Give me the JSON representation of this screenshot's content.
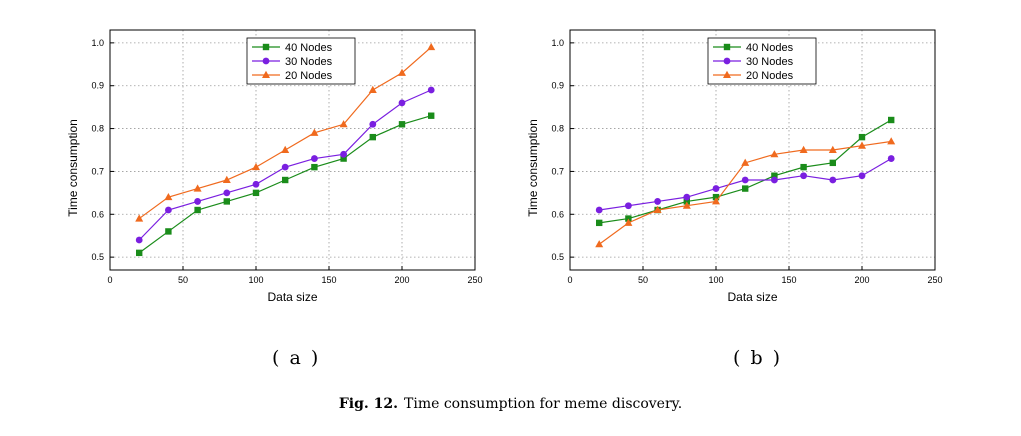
{
  "colors": {
    "series_40": "#1a8c1a",
    "series_30": "#7a1fe0",
    "series_20": "#f06a1e"
  },
  "chart_data": [
    {
      "type": "line",
      "panel": "( a )",
      "xlabel": "Data size",
      "ylabel": "Time consumption",
      "xlim": [
        0,
        250
      ],
      "ylim": [
        0.47,
        1.03
      ],
      "xticks": [
        0,
        50,
        100,
        150,
        200,
        250
      ],
      "yticks": [
        0.5,
        0.6,
        0.7,
        0.8,
        0.9,
        1.0
      ],
      "xtick_labels": [
        "0",
        "50",
        "100",
        "150",
        "200",
        "250"
      ],
      "ytick_labels": [
        "0.5",
        "0.6",
        "0.7",
        "0.8",
        "0.9",
        "1.0"
      ],
      "grid": true,
      "legend_position": "top-center",
      "x": [
        20,
        40,
        60,
        80,
        100,
        120,
        140,
        160,
        180,
        200,
        220
      ],
      "series": [
        {
          "name": "40 Nodes",
          "marker": "square",
          "values": [
            0.51,
            0.56,
            0.61,
            0.63,
            0.65,
            0.68,
            0.71,
            0.73,
            0.78,
            0.81,
            0.83
          ]
        },
        {
          "name": "30 Nodes",
          "marker": "circle",
          "values": [
            0.54,
            0.61,
            0.63,
            0.65,
            0.67,
            0.71,
            0.73,
            0.74,
            0.81,
            0.86,
            0.89
          ]
        },
        {
          "name": "20 Nodes",
          "marker": "triangle",
          "values": [
            0.59,
            0.64,
            0.66,
            0.68,
            0.71,
            0.75,
            0.79,
            0.81,
            0.89,
            0.93,
            0.99
          ]
        }
      ]
    },
    {
      "type": "line",
      "panel": "( b )",
      "xlabel": "Data size",
      "ylabel": "Time consumption",
      "xlim": [
        0,
        250
      ],
      "ylim": [
        0.47,
        1.03
      ],
      "xticks": [
        0,
        50,
        100,
        150,
        200,
        250
      ],
      "yticks": [
        0.5,
        0.6,
        0.7,
        0.8,
        0.9,
        1.0
      ],
      "xtick_labels": [
        "0",
        "50",
        "100",
        "150",
        "200",
        "250"
      ],
      "ytick_labels": [
        "0.5",
        "0.6",
        "0.7",
        "0.8",
        "0.9",
        "1.0"
      ],
      "grid": true,
      "legend_position": "top-right",
      "x": [
        20,
        40,
        60,
        80,
        100,
        120,
        140,
        160,
        180,
        200,
        220
      ],
      "series": [
        {
          "name": "40 Nodes",
          "marker": "square",
          "values": [
            0.58,
            0.59,
            0.61,
            0.63,
            0.64,
            0.66,
            0.69,
            0.71,
            0.72,
            0.78,
            0.82
          ]
        },
        {
          "name": "30 Nodes",
          "marker": "circle",
          "values": [
            0.61,
            0.62,
            0.63,
            0.64,
            0.66,
            0.68,
            0.68,
            0.69,
            0.68,
            0.69,
            0.73
          ]
        },
        {
          "name": "20 Nodes",
          "marker": "triangle",
          "values": [
            0.53,
            0.58,
            0.61,
            0.62,
            0.63,
            0.72,
            0.74,
            0.75,
            0.75,
            0.76,
            0.77
          ]
        }
      ]
    }
  ],
  "caption": {
    "figure": "Fig. 12.",
    "text": "Time consumption for meme discovery."
  }
}
